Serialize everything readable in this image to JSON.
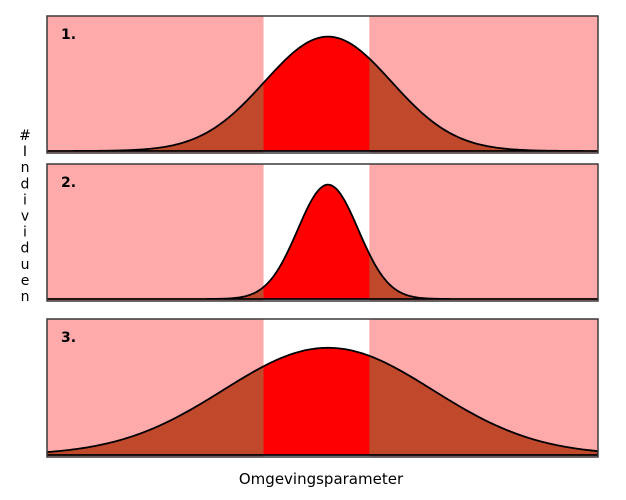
{
  "xlabel": "Omgevingsparameter",
  "ylabel_chars": [
    "#",
    "I",
    "n",
    "d",
    "i",
    "v",
    "i",
    "d",
    "u",
    "e",
    "n"
  ],
  "colors": {
    "outside_zone": "#ffaaaa",
    "inside_zone": "#ffffff",
    "curve_inside": "#ff0000",
    "curve_outside": "#c0482b",
    "outline": "#000000"
  },
  "panels": [
    {
      "label": "1.",
      "distribution": {
        "mean": 0.51,
        "sd": 0.115,
        "peak": 0.86
      }
    },
    {
      "label": "2.",
      "distribution": {
        "mean": 0.51,
        "sd": 0.055,
        "peak": 0.86
      }
    },
    {
      "label": "3.",
      "distribution": {
        "mean": 0.51,
        "sd": 0.19,
        "peak": 0.8
      }
    }
  ],
  "tolerance_zone": {
    "start": 0.393,
    "end": 0.585
  }
}
